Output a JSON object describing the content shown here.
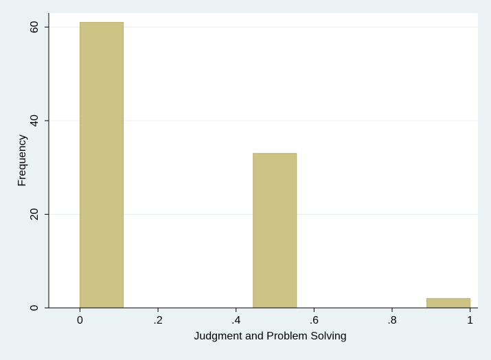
{
  "chart_data": {
    "type": "bar",
    "title": "",
    "xlabel": "Judgment and Problem Solving",
    "ylabel": "Frequency",
    "xlim": [
      -0.08,
      1.02
    ],
    "ylim": [
      0,
      63
    ],
    "bin_width": 0.111,
    "x": [
      0,
      0.444,
      0.889
    ],
    "values": [
      61,
      33,
      2
    ],
    "x_ticks": [
      0,
      0.2,
      0.4,
      0.6,
      0.8,
      1
    ],
    "x_tick_labels": [
      "0",
      ".2",
      ".4",
      ".6",
      ".8",
      "1"
    ],
    "y_ticks": [
      0,
      20,
      40,
      60
    ],
    "y_tick_labels": [
      "0",
      "20",
      "40",
      "60"
    ],
    "grid": true,
    "legend": "none"
  },
  "colors": {
    "background": "#eaf2f3",
    "plot_background": "#ffffff",
    "bar_fill": "#cdc384",
    "bar_stroke": "#b9af6c",
    "grid": "#e6eef0",
    "axis": "#000000"
  }
}
